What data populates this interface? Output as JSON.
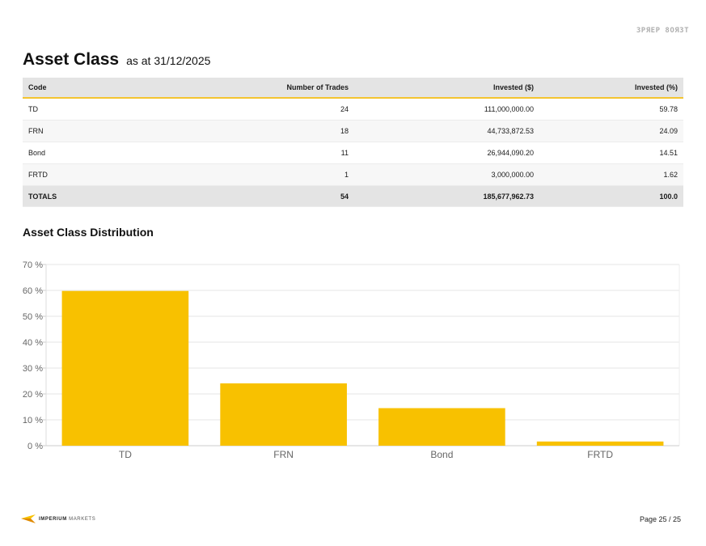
{
  "watermark": "ЗРЯЕР 8ОЯЗТ",
  "header": {
    "title": "Asset Class",
    "subtitle": "as at 31/12/2025"
  },
  "table": {
    "columns": [
      "Code",
      "Number of Trades",
      "Invested ($)",
      "Invested (%)"
    ],
    "rows": [
      [
        "TD",
        "24",
        "111,000,000.00",
        "59.78"
      ],
      [
        "FRN",
        "18",
        "44,733,872.53",
        "24.09"
      ],
      [
        "Bond",
        "11",
        "26,944,090.20",
        "14.51"
      ],
      [
        "FRTD",
        "1",
        "3,000,000.00",
        "1.62"
      ]
    ],
    "totals": [
      "TOTALS",
      "54",
      "185,677,962.73",
      "100.0"
    ]
  },
  "chart_section": {
    "title": "Asset Class Distribution"
  },
  "chart_data": {
    "type": "bar",
    "title": "Asset Class Distribution",
    "categories": [
      "TD",
      "FRN",
      "Bond",
      "FRTD"
    ],
    "values": [
      59.78,
      24.09,
      14.51,
      1.62
    ],
    "ylim": [
      0,
      70
    ],
    "yticks": [
      0,
      10,
      20,
      30,
      40,
      50,
      60,
      70
    ],
    "ytick_suffix": " %",
    "bar_color": "#f8c100",
    "grid": true,
    "legend": "none"
  },
  "footer": {
    "logo_word1": "IMPERIUM",
    "logo_word2": "MARKETS",
    "page": "Page 25 / 25"
  },
  "colors": {
    "accent": "#f4c430",
    "header_bg": "#e4e4e4"
  }
}
